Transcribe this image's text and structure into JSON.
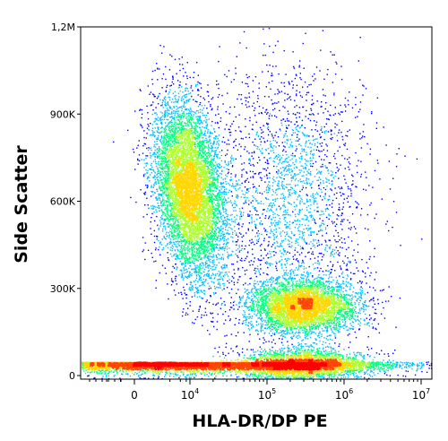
{
  "chart_data": {
    "type": "scatter",
    "subtype": "flow-cytometry-density",
    "xlabel": "HLA-DR/DP PE",
    "ylabel": "Side Scatter",
    "x_scale": "biexponential",
    "y_scale": "linear",
    "ylim": [
      0,
      1200000
    ],
    "y_ticks": [
      {
        "value": 0,
        "label": "0"
      },
      {
        "value": 300000,
        "label": "300K"
      },
      {
        "value": 600000,
        "label": "600K"
      },
      {
        "value": 900000,
        "label": "900K"
      },
      {
        "value": 1200000,
        "label": "1,2M"
      }
    ],
    "x_ticks": [
      {
        "value": 0,
        "base": "0",
        "exp": ""
      },
      {
        "value": 10000,
        "base": "10",
        "exp": "4"
      },
      {
        "value": 100000,
        "base": "10",
        "exp": "5"
      },
      {
        "value": 1000000,
        "base": "10",
        "exp": "6"
      },
      {
        "value": 10000000,
        "base": "10",
        "exp": "7"
      }
    ],
    "populations": [
      {
        "description_free": true,
        "x_center": 300,
        "y_center": 30000,
        "x_spread_decades": 0.9,
        "y_spread": 25000,
        "weight": 0.3
      },
      {
        "x_center": 9000,
        "y_center": 640000,
        "x_spread_decades": 0.22,
        "y_spread": 150000,
        "weight": 0.3
      },
      {
        "x_center": 300000,
        "y_center": 240000,
        "x_spread_decades": 0.35,
        "y_spread": 45000,
        "weight": 0.18
      },
      {
        "x_center": 300000,
        "y_center": 40000,
        "x_spread_decades": 0.4,
        "y_spread": 25000,
        "weight": 0.12
      },
      {
        "x_center": 200000,
        "y_center": 600000,
        "x_spread_decades": 0.5,
        "y_spread": 250000,
        "weight": 0.1
      }
    ],
    "colormap": [
      "#0000ff",
      "#00bfff",
      "#00ff7f",
      "#adff2f",
      "#ffd700",
      "#ff4500",
      "#ff0000"
    ],
    "grid": false,
    "legend": "none"
  }
}
